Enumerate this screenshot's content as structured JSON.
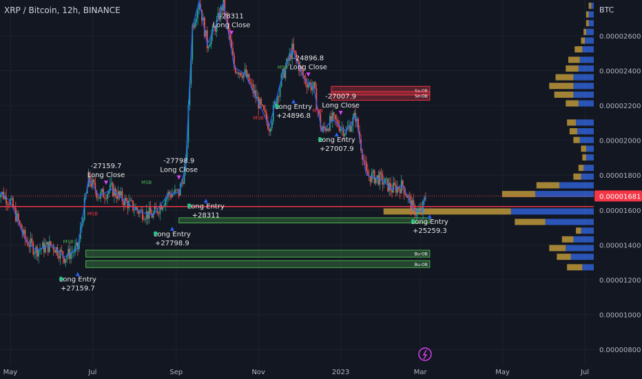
{
  "header": {
    "title": "XRP / Bitcoin, 12h, BINANCE",
    "currency": "BTC"
  },
  "chart_data": {
    "type": "candlestick",
    "y_axis": {
      "ticks": [
        "0.00002600",
        "0.00002400",
        "0.00002200",
        "0.00002000",
        "0.00001800",
        "0.00001600",
        "0.00001400",
        "0.00001200",
        "0.00001000",
        "0.00000800"
      ],
      "tick_values": [
        2.6e-05,
        2.4e-05,
        2.2e-05,
        2e-05,
        1.8e-05,
        1.6e-05,
        1.4e-05,
        1.2e-05,
        1e-05,
        8e-06
      ],
      "range": [
        7.1e-06,
        2.805e-05
      ]
    },
    "x_axis": {
      "labels": [
        "May",
        "Jul",
        "Sep",
        "Nov",
        "2023",
        "Mar",
        "May",
        "Jul"
      ],
      "dates": [
        "2022-05-01",
        "2022-07-01",
        "2022-09-01",
        "2022-11-01",
        "2023-01-01",
        "2023-03-01",
        "2023-05-01",
        "2023-07-01"
      ]
    },
    "current_price": {
      "label": "0.00001681",
      "value": 1.681e-05
    },
    "price_line": 1.62e-05,
    "series": [
      {
        "date": "2022-04-21",
        "value": 1.72e-05
      },
      {
        "date": "2022-05-01",
        "value": 1.65e-05
      },
      {
        "date": "2022-05-12",
        "value": 1.43e-05
      },
      {
        "date": "2022-05-20",
        "value": 1.37e-05
      },
      {
        "date": "2022-06-01",
        "value": 1.4e-05
      },
      {
        "date": "2022-06-10",
        "value": 1.33e-05
      },
      {
        "date": "2022-06-20",
        "value": 1.38e-05
      },
      {
        "date": "2022-06-28",
        "value": 1.78e-05
      },
      {
        "date": "2022-07-06",
        "value": 1.68e-05
      },
      {
        "date": "2022-07-15",
        "value": 1.72e-05
      },
      {
        "date": "2022-07-25",
        "value": 1.65e-05
      },
      {
        "date": "2022-08-05",
        "value": 1.59e-05
      },
      {
        "date": "2022-08-15",
        "value": 1.57e-05
      },
      {
        "date": "2022-08-26",
        "value": 1.69e-05
      },
      {
        "date": "2022-09-03",
        "value": 1.7e-05
      },
      {
        "date": "2022-09-08",
        "value": 1.85e-05
      },
      {
        "date": "2022-09-13",
        "value": 2.65e-05
      },
      {
        "date": "2022-09-18",
        "value": 2.8e-05
      },
      {
        "date": "2022-09-24",
        "value": 2.55e-05
      },
      {
        "date": "2022-10-01",
        "value": 2.67e-05
      },
      {
        "date": "2022-10-06",
        "value": 2.79e-05
      },
      {
        "date": "2022-10-14",
        "value": 2.42e-05
      },
      {
        "date": "2022-10-22",
        "value": 2.38e-05
      },
      {
        "date": "2022-10-30",
        "value": 2.25e-05
      },
      {
        "date": "2022-11-09",
        "value": 2.08e-05
      },
      {
        "date": "2022-11-18",
        "value": 2.35e-05
      },
      {
        "date": "2022-11-26",
        "value": 2.52e-05
      },
      {
        "date": "2022-12-05",
        "value": 2.35e-05
      },
      {
        "date": "2022-12-12",
        "value": 2.3e-05
      },
      {
        "date": "2022-12-18",
        "value": 2.05e-05
      },
      {
        "date": "2022-12-26",
        "value": 2.12e-05
      },
      {
        "date": "2023-01-05",
        "value": 2.05e-05
      },
      {
        "date": "2023-01-12",
        "value": 2.14e-05
      },
      {
        "date": "2023-01-20",
        "value": 1.8e-05
      },
      {
        "date": "2023-01-30",
        "value": 1.78e-05
      },
      {
        "date": "2023-02-08",
        "value": 1.72e-05
      },
      {
        "date": "2023-02-16",
        "value": 1.74e-05
      },
      {
        "date": "2023-02-24",
        "value": 1.6e-05
      },
      {
        "date": "2023-03-02",
        "value": 1.59e-05
      },
      {
        "date": "2023-03-05",
        "value": 1.68e-05
      }
    ],
    "zones": [
      {
        "label": "Se-OB",
        "start": "2022-12-25",
        "end": "2023-03-08",
        "top": 2.31e-05,
        "bottom": 2.26e-05,
        "kind": "bear"
      },
      {
        "label": "Se-OB",
        "start": "2022-12-25",
        "end": "2023-03-08",
        "top": 2.28e-05,
        "bottom": 2.23e-05,
        "kind": "bear"
      },
      {
        "label": "",
        "start": "2022-09-03",
        "end": "2023-03-08",
        "top": 1.556e-05,
        "bottom": 1.526e-05,
        "kind": "bull"
      },
      {
        "label": "Bu-OB",
        "start": "2022-06-26",
        "end": "2023-03-08",
        "top": 1.37e-05,
        "bottom": 1.33e-05,
        "kind": "bull"
      },
      {
        "label": "Bu-OB",
        "start": "2022-06-26",
        "end": "2023-03-08",
        "top": 1.31e-05,
        "bottom": 1.27e-05,
        "kind": "bull"
      }
    ],
    "annotations": [
      {
        "date": "2022-07-11",
        "value": 1.84e-05,
        "lines": [
          "-27159.7",
          "Long Close"
        ],
        "kind": "close"
      },
      {
        "date": "2022-06-20",
        "value": 1.19e-05,
        "lines": [
          "Long Entry",
          "+27159.7"
        ],
        "kind": "entry"
      },
      {
        "date": "2022-09-03",
        "value": 1.87e-05,
        "lines": [
          "-27798.9",
          "Long Close"
        ],
        "kind": "close"
      },
      {
        "date": "2022-08-29",
        "value": 1.45e-05,
        "lines": [
          "Long Entry",
          "+27798.9"
        ],
        "kind": "entry"
      },
      {
        "date": "2022-10-12",
        "value": 2.7e-05,
        "lines": [
          "-28311",
          "Long Close"
        ],
        "kind": "close"
      },
      {
        "date": "2022-09-23",
        "value": 1.61e-05,
        "lines": [
          "Long Entry",
          "+28311"
        ],
        "kind": "entry"
      },
      {
        "date": "2022-12-08",
        "value": 2.46e-05,
        "lines": [
          "-24896.8",
          "Long Close"
        ],
        "kind": "close"
      },
      {
        "date": "2022-11-27",
        "value": 2.18e-05,
        "lines": [
          "Long Entry",
          "+24896.8"
        ],
        "kind": "entry"
      },
      {
        "date": "2023-01-01",
        "value": 2.24e-05,
        "lines": [
          "-27007.9",
          "Long Close"
        ],
        "kind": "close"
      },
      {
        "date": "2022-12-29",
        "value": 1.99e-05,
        "lines": [
          "Long Entry",
          "+27007.9"
        ],
        "kind": "entry"
      },
      {
        "date": "2023-03-08",
        "value": 1.52e-05,
        "lines": [
          "Long Entry",
          "+25259.3"
        ],
        "kind": "entry"
      }
    ],
    "msb_labels": [
      {
        "date": "2022-06-13",
        "value": 1.41e-05,
        "text": "MSB",
        "kind": "bull"
      },
      {
        "date": "2022-07-01",
        "value": 1.57e-05,
        "text": "MSB",
        "kind": "bear"
      },
      {
        "date": "2022-08-10",
        "value": 1.75e-05,
        "text": "MSB",
        "kind": "bull"
      },
      {
        "date": "2022-11-01",
        "value": 2.12e-05,
        "text": "MSB",
        "kind": "bear"
      },
      {
        "date": "2022-11-19",
        "value": 2.41e-05,
        "text": "MSB",
        "kind": "bull"
      },
      {
        "date": "2022-12-15",
        "value": 2.16e-05,
        "text": "MSB",
        "kind": "bear"
      }
    ],
    "volume_profile": {
      "bins": [
        {
          "value": 1.27e-05,
          "up": 0.12,
          "down": 0.09
        },
        {
          "value": 1.33e-05,
          "up": 0.11,
          "down": 0.18
        },
        {
          "value": 1.38e-05,
          "up": 0.13,
          "down": 0.22
        },
        {
          "value": 1.43e-05,
          "up": 0.09,
          "down": 0.16
        },
        {
          "value": 1.48e-05,
          "up": 0.04,
          "down": 0.1
        },
        {
          "value": 1.53e-05,
          "up": 0.24,
          "down": 0.38
        },
        {
          "value": 1.59e-05,
          "up": 1.0,
          "down": 0.65
        },
        {
          "value": 1.69e-05,
          "up": 0.26,
          "down": 0.46
        },
        {
          "value": 1.74e-05,
          "up": 0.18,
          "down": 0.27
        },
        {
          "value": 1.79e-05,
          "up": 0.06,
          "down": 0.1
        },
        {
          "value": 1.84e-05,
          "up": 0.04,
          "down": 0.08
        },
        {
          "value": 1.9e-05,
          "up": 0.03,
          "down": 0.06
        },
        {
          "value": 1.95e-05,
          "up": 0.04,
          "down": 0.06
        },
        {
          "value": 2e-05,
          "up": 0.05,
          "down": 0.11
        },
        {
          "value": 2.05e-05,
          "up": 0.06,
          "down": 0.13
        },
        {
          "value": 2.1e-05,
          "up": 0.07,
          "down": 0.14
        },
        {
          "value": 2.21e-05,
          "up": 0.1,
          "down": 0.12
        },
        {
          "value": 2.26e-05,
          "up": 0.15,
          "down": 0.16
        },
        {
          "value": 2.31e-05,
          "up": 0.19,
          "down": 0.16
        },
        {
          "value": 2.36e-05,
          "up": 0.14,
          "down": 0.16
        },
        {
          "value": 2.41e-05,
          "up": 0.1,
          "down": 0.12
        },
        {
          "value": 2.46e-05,
          "up": 0.09,
          "down": 0.11
        },
        {
          "value": 2.52e-05,
          "up": 0.06,
          "down": 0.09
        },
        {
          "value": 2.57e-05,
          "up": 0.03,
          "down": 0.07
        },
        {
          "value": 2.62e-05,
          "up": 0.02,
          "down": 0.06
        },
        {
          "value": 2.67e-05,
          "up": 0.02,
          "down": 0.04
        },
        {
          "value": 2.72e-05,
          "up": 0.02,
          "down": 0.04
        },
        {
          "value": 2.77e-05,
          "up": 0.02,
          "down": 0.02
        }
      ]
    },
    "colors": {
      "background": "#131722",
      "grid": "#1e222d",
      "axis_text": "#b2b5be",
      "candle_up": "#26a69a",
      "candle_down": "#ef5350",
      "zigzag": "#2962ff",
      "bull_zone": "#4caf50",
      "bear_zone": "#f23645",
      "label_text": "#ffffff",
      "signal": "#e040fb",
      "profile_up": "#c8a03c",
      "profile_down": "#2f5fd0",
      "price_tag": "#f23645"
    },
    "logo_icon": "tradingview-icon"
  }
}
